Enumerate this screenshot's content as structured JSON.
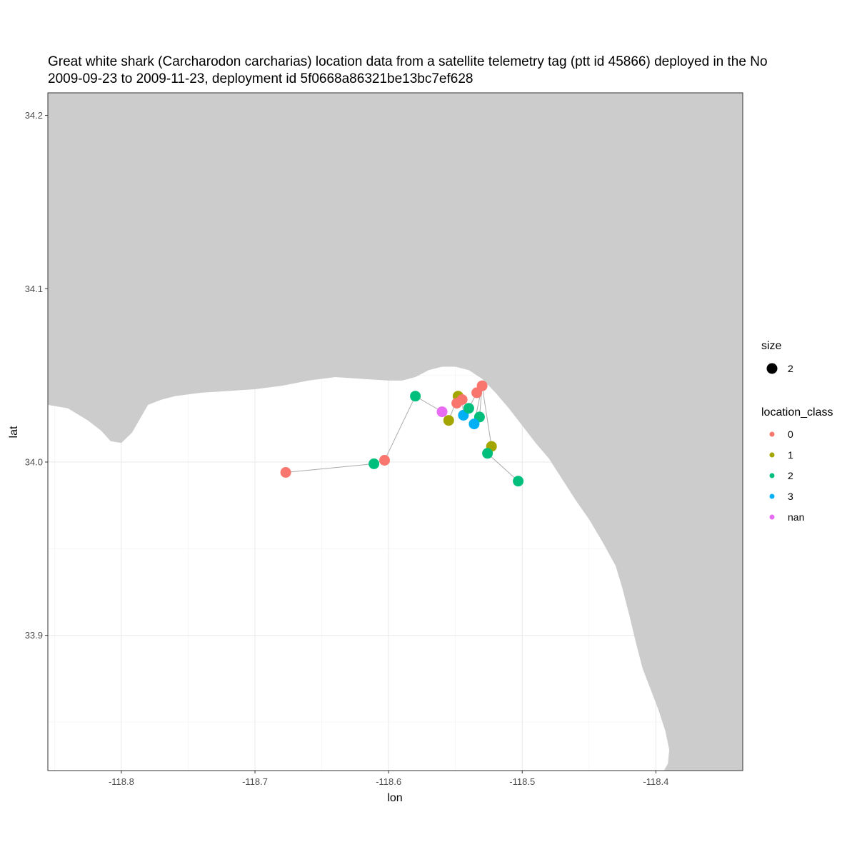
{
  "chart_data": {
    "type": "scatter",
    "title_lines": [
      "Great white shark (Carcharodon carcharias) location data from a satellite telemetry tag (ptt id 45866) deployed in the No",
      "2009-09-23 to 2009-11-23, deployment id 5f0668a86321be13bc7ef628"
    ],
    "xlabel": "lon",
    "ylabel": "lat",
    "xlim": [
      -118.855,
      -118.335
    ],
    "ylim": [
      33.822,
      34.213
    ],
    "x_ticks": [
      -118.8,
      -118.7,
      -118.6,
      -118.5,
      -118.4
    ],
    "x_tick_labels": [
      "-118.8",
      "-118.7",
      "-118.6",
      "-118.5",
      "-118.4"
    ],
    "y_ticks": [
      33.9,
      34.0,
      34.1,
      34.2
    ],
    "y_tick_labels": [
      "33.9",
      "34.0",
      "34.1",
      "34.2"
    ],
    "grid": true,
    "land_color": "#cccccc",
    "track_color": "#aaaaaa",
    "legend_placement": "right",
    "legend": {
      "size_title": "size",
      "size_items": [
        {
          "label": "2"
        }
      ],
      "class_title": "location_class",
      "class_items": [
        {
          "label": "0",
          "color": "#F8766D"
        },
        {
          "label": "1",
          "color": "#A3A500"
        },
        {
          "label": "2",
          "color": "#00BF7D"
        },
        {
          "label": "3",
          "color": "#00B0F6"
        },
        {
          "label": "nan",
          "color": "#E76BF3"
        }
      ]
    },
    "points": [
      {
        "lon": -118.677,
        "lat": 33.994,
        "class": "0"
      },
      {
        "lon": -118.611,
        "lat": 33.999,
        "class": "2"
      },
      {
        "lon": -118.603,
        "lat": 34.001,
        "class": "0"
      },
      {
        "lon": -118.58,
        "lat": 34.038,
        "class": "2"
      },
      {
        "lon": -118.56,
        "lat": 34.029,
        "class": "nan"
      },
      {
        "lon": -118.555,
        "lat": 34.024,
        "class": "1"
      },
      {
        "lon": -118.548,
        "lat": 34.038,
        "class": "1"
      },
      {
        "lon": -118.549,
        "lat": 34.034,
        "class": "0"
      },
      {
        "lon": -118.545,
        "lat": 34.036,
        "class": "0"
      },
      {
        "lon": -118.544,
        "lat": 34.027,
        "class": "3"
      },
      {
        "lon": -118.54,
        "lat": 34.031,
        "class": "2"
      },
      {
        "lon": -118.534,
        "lat": 34.04,
        "class": "0"
      },
      {
        "lon": -118.53,
        "lat": 34.044,
        "class": "0"
      },
      {
        "lon": -118.532,
        "lat": 34.026,
        "class": "2"
      },
      {
        "lon": -118.536,
        "lat": 34.022,
        "class": "3"
      },
      {
        "lon": -118.523,
        "lat": 34.009,
        "class": "1"
      },
      {
        "lon": -118.526,
        "lat": 34.005,
        "class": "2"
      },
      {
        "lon": -118.503,
        "lat": 33.989,
        "class": "2"
      }
    ],
    "track": [
      [
        -118.677,
        33.994
      ],
      [
        -118.611,
        33.999
      ],
      [
        -118.603,
        34.001
      ],
      [
        -118.58,
        34.038
      ],
      [
        -118.56,
        34.029
      ],
      [
        -118.555,
        34.024
      ],
      [
        -118.548,
        34.038
      ],
      [
        -118.549,
        34.034
      ],
      [
        -118.545,
        34.036
      ],
      [
        -118.544,
        34.027
      ],
      [
        -118.54,
        34.031
      ],
      [
        -118.534,
        34.04
      ],
      [
        -118.53,
        34.044
      ],
      [
        -118.532,
        34.026
      ],
      [
        -118.536,
        34.022
      ],
      [
        -118.53,
        34.044
      ],
      [
        -118.523,
        34.009
      ],
      [
        -118.526,
        34.005
      ],
      [
        -118.503,
        33.989
      ]
    ],
    "coastline": [
      [
        -118.855,
        34.033
      ],
      [
        -118.84,
        34.031
      ],
      [
        -118.825,
        34.024
      ],
      [
        -118.815,
        34.018
      ],
      [
        -118.808,
        34.012
      ],
      [
        -118.8,
        34.011
      ],
      [
        -118.792,
        34.017
      ],
      [
        -118.786,
        34.025
      ],
      [
        -118.78,
        34.033
      ],
      [
        -118.77,
        34.036
      ],
      [
        -118.76,
        34.038
      ],
      [
        -118.74,
        34.04
      ],
      [
        -118.72,
        34.041
      ],
      [
        -118.7,
        34.042
      ],
      [
        -118.68,
        34.044
      ],
      [
        -118.66,
        34.047
      ],
      [
        -118.64,
        34.049
      ],
      [
        -118.62,
        34.048
      ],
      [
        -118.6,
        34.047
      ],
      [
        -118.59,
        34.047
      ],
      [
        -118.58,
        34.049
      ],
      [
        -118.57,
        34.053
      ],
      [
        -118.56,
        34.055
      ],
      [
        -118.55,
        34.055
      ],
      [
        -118.54,
        34.053
      ],
      [
        -118.53,
        34.048
      ],
      [
        -118.52,
        34.04
      ],
      [
        -118.51,
        34.031
      ],
      [
        -118.5,
        34.021
      ],
      [
        -118.49,
        34.011
      ],
      [
        -118.48,
        34.002
      ],
      [
        -118.47,
        33.99
      ],
      [
        -118.46,
        33.978
      ],
      [
        -118.45,
        33.967
      ],
      [
        -118.44,
        33.954
      ],
      [
        -118.43,
        33.94
      ],
      [
        -118.425,
        33.927
      ],
      [
        -118.42,
        33.912
      ],
      [
        -118.415,
        33.896
      ],
      [
        -118.41,
        33.881
      ],
      [
        -118.404,
        33.869
      ],
      [
        -118.398,
        33.857
      ],
      [
        -118.393,
        33.845
      ],
      [
        -118.39,
        33.834
      ],
      [
        -118.391,
        33.826
      ],
      [
        -118.394,
        33.822
      ]
    ]
  }
}
